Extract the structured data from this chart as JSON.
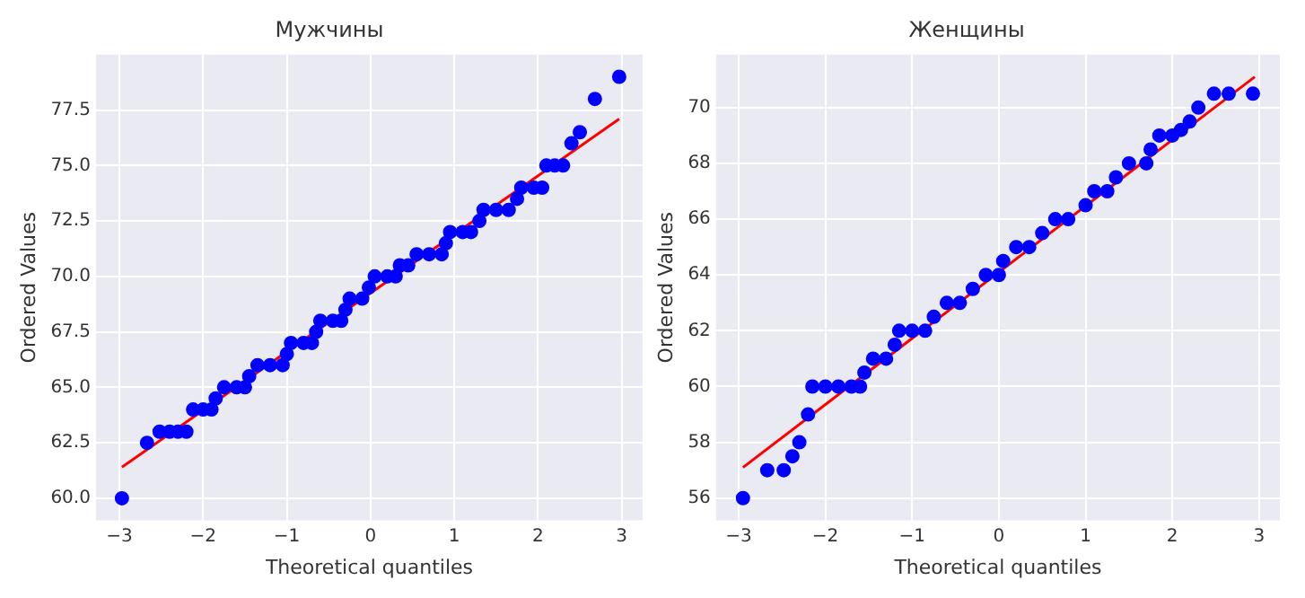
{
  "chart_data": [
    {
      "type": "scatter",
      "title": "Мужчины",
      "xlabel": "Theoretical quantiles",
      "ylabel": "Ordered Values",
      "xlim": [
        -3.28,
        3.25
      ],
      "ylim": [
        59,
        80
      ],
      "xticks": [
        -3,
        -2,
        -1,
        0,
        1,
        2,
        3
      ],
      "yticks": [
        {
          "value": 60,
          "label": "60.0"
        },
        {
          "value": 62.5,
          "label": "62.5"
        },
        {
          "value": 65,
          "label": "65.0"
        },
        {
          "value": 67.5,
          "label": "67.5"
        },
        {
          "value": 70,
          "label": "70.0"
        },
        {
          "value": 72.5,
          "label": "72.5"
        },
        {
          "value": 75,
          "label": "75.0"
        },
        {
          "value": 77.5,
          "label": "77.5"
        }
      ],
      "grid": true,
      "legend": false,
      "series": [
        {
          "type": "scatter",
          "color": "#0000ff",
          "marker": "circle",
          "x": [
            -2.97,
            -2.67,
            -2.52,
            -2.4,
            -2.3,
            -2.2,
            -2.12,
            -2.0,
            -1.9,
            -1.85,
            -1.75,
            -1.6,
            -1.5,
            -1.45,
            -1.35,
            -1.2,
            -1.05,
            -1.0,
            -0.95,
            -0.8,
            -0.7,
            -0.65,
            -0.6,
            -0.45,
            -0.35,
            -0.3,
            -0.25,
            -0.1,
            -0.02,
            0.05,
            0.2,
            0.3,
            0.35,
            0.45,
            0.55,
            0.7,
            0.85,
            0.9,
            0.95,
            1.1,
            1.2,
            1.3,
            1.35,
            1.5,
            1.65,
            1.75,
            1.8,
            1.95,
            2.05,
            2.1,
            2.2,
            2.3,
            2.4,
            2.5,
            2.68,
            2.97
          ],
          "values": [
            60,
            62.5,
            63,
            63,
            63,
            63,
            64,
            64,
            64,
            64.5,
            65,
            65,
            65,
            65.5,
            66,
            66,
            66,
            66.5,
            67,
            67,
            67,
            67.5,
            68,
            68,
            68,
            68.5,
            69,
            69,
            69.5,
            70,
            70,
            70,
            70.5,
            70.5,
            71,
            71,
            71,
            71.5,
            72,
            72,
            72,
            72.5,
            73,
            73,
            73,
            73.5,
            74,
            74,
            74,
            75,
            75,
            75,
            76,
            76.5,
            78,
            79
          ]
        },
        {
          "type": "line",
          "color": "#ff0000",
          "marker": "none",
          "x": [
            -2.97,
            2.97
          ],
          "values": [
            61.4,
            77.1
          ]
        }
      ]
    },
    {
      "type": "scatter",
      "title": "Женщины",
      "xlabel": "Theoretical quantiles",
      "ylabel": "Ordered Values",
      "xlim": [
        -3.26,
        3.24
      ],
      "ylim": [
        55.2,
        71.9
      ],
      "xticks": [
        -3,
        -2,
        -1,
        0,
        1,
        2,
        3
      ],
      "yticks": [
        56,
        58,
        60,
        62,
        64,
        66,
        68,
        70
      ],
      "grid": true,
      "legend": false,
      "series": [
        {
          "type": "scatter",
          "color": "#0000ff",
          "marker": "circle",
          "x": [
            -2.95,
            -2.67,
            -2.48,
            -2.38,
            -2.3,
            -2.2,
            -2.15,
            -2.0,
            -1.85,
            -1.7,
            -1.6,
            -1.55,
            -1.45,
            -1.3,
            -1.2,
            -1.15,
            -1.0,
            -0.85,
            -0.75,
            -0.6,
            -0.45,
            -0.3,
            -0.15,
            0.0,
            0.05,
            0.2,
            0.35,
            0.5,
            0.65,
            0.8,
            1.0,
            1.1,
            1.25,
            1.35,
            1.5,
            1.7,
            1.75,
            1.85,
            2.0,
            2.1,
            2.2,
            2.3,
            2.48,
            2.65,
            2.93
          ],
          "values": [
            56,
            57,
            57,
            57.5,
            58,
            59,
            60,
            60,
            60,
            60,
            60,
            60.5,
            61,
            61,
            61.5,
            62,
            62,
            62,
            62.5,
            63,
            63,
            63.5,
            64,
            64,
            64.5,
            65,
            65,
            65.5,
            66,
            66,
            66.5,
            67,
            67,
            67.5,
            68,
            68,
            68.5,
            69,
            69,
            69.2,
            69.5,
            70,
            70.5,
            70.5,
            70.5
          ]
        },
        {
          "type": "line",
          "color": "#ff0000",
          "marker": "none",
          "x": [
            -2.95,
            2.95
          ],
          "values": [
            57.1,
            71.1
          ]
        }
      ]
    }
  ]
}
